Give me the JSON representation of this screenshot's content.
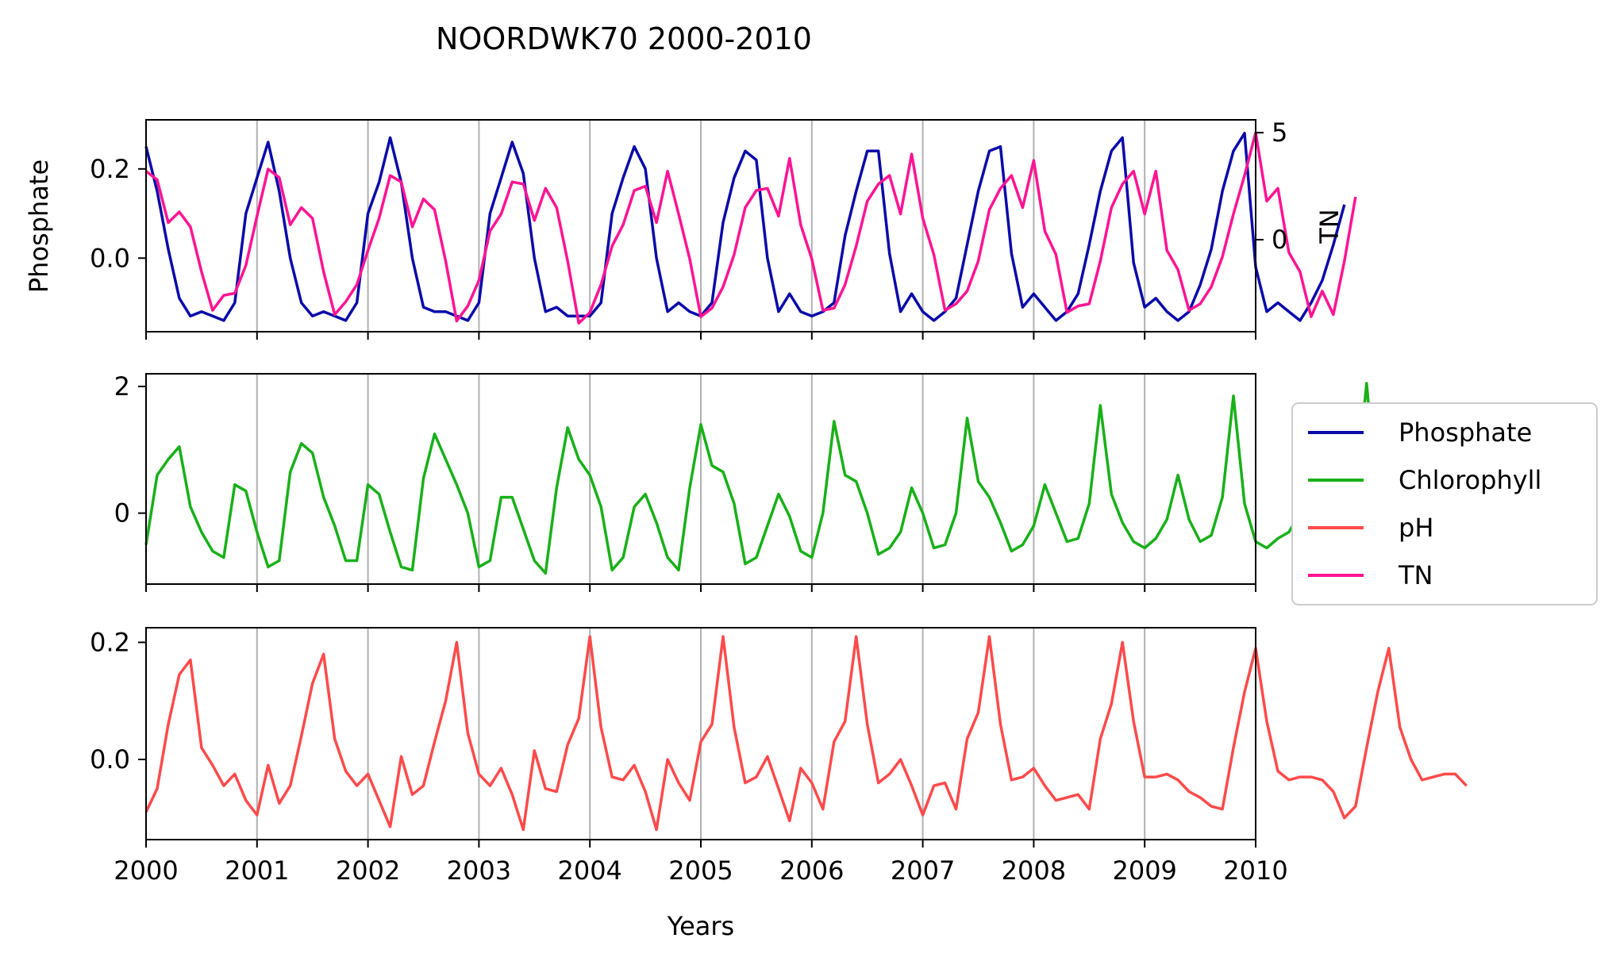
{
  "chart_data": {
    "type": "line",
    "title": "NOORDWK70 2000-2010",
    "xlabel": "Years",
    "x_range": [
      2000,
      2010
    ],
    "x_ticks": [
      "2000",
      "2001",
      "2002",
      "2003",
      "2004",
      "2005",
      "2006",
      "2007",
      "2008",
      "2009",
      "2010"
    ],
    "grid": "vertical lines at year ticks",
    "legend_placement": "right, outside axes",
    "legend": [
      "Phosphate",
      "Chlorophyll",
      "pH",
      "TN"
    ],
    "colors": {
      "Phosphate": "#0a0aaa",
      "Chlorophyll": "#18b018",
      "pH": "#ff4a4a",
      "TN": "#ff1493"
    },
    "panels": [
      {
        "name": "top",
        "ylabel": "Phosphate",
        "ylim": [
          -0.165,
          0.31
        ],
        "yticks": [
          "0.0",
          "0.2"
        ],
        "ytick_values": [
          0.0,
          0.2
        ],
        "right_axis": {
          "ylabel": "TN",
          "ylim": [
            -4.3,
            5.6
          ],
          "yticks": [
            "0",
            "5"
          ],
          "ytick_values": [
            0,
            5
          ]
        }
      },
      {
        "name": "middle",
        "ylim": [
          -1.12,
          2.2
        ],
        "yticks": [
          "0",
          "2"
        ],
        "ytick_values": [
          0,
          2
        ]
      },
      {
        "name": "bottom",
        "ylim": [
          -0.137,
          0.225
        ],
        "yticks": [
          "0.0",
          "0.2"
        ],
        "ytick_values": [
          0.0,
          0.2
        ]
      }
    ],
    "series": [
      {
        "name": "Phosphate",
        "panel": 0,
        "axis": "left",
        "x_start": 2000.0,
        "x_step": 0.1,
        "values": [
          0.25,
          0.15,
          0.02,
          -0.09,
          -0.13,
          -0.12,
          -0.13,
          -0.14,
          -0.1,
          0.1,
          0.18,
          0.26,
          0.15,
          0.0,
          -0.1,
          -0.13,
          -0.12,
          -0.13,
          -0.14,
          -0.1,
          0.1,
          0.17,
          0.27,
          0.17,
          0.0,
          -0.11,
          -0.12,
          -0.12,
          -0.13,
          -0.14,
          -0.1,
          0.1,
          0.18,
          0.26,
          0.19,
          0.0,
          -0.12,
          -0.11,
          -0.13,
          -0.13,
          -0.13,
          -0.1,
          0.1,
          0.18,
          0.25,
          0.2,
          0.0,
          -0.12,
          -0.1,
          -0.12,
          -0.13,
          -0.1,
          0.08,
          0.18,
          0.24,
          0.22,
          0.0,
          -0.12,
          -0.08,
          -0.12,
          -0.13,
          -0.12,
          -0.1,
          0.05,
          0.15,
          0.24,
          0.24,
          0.01,
          -0.12,
          -0.08,
          -0.12,
          -0.14,
          -0.12,
          -0.09,
          0.03,
          0.15,
          0.24,
          0.25,
          0.01,
          -0.11,
          -0.08,
          -0.11,
          -0.14,
          -0.12,
          -0.08,
          0.03,
          0.15,
          0.24,
          0.27,
          -0.01,
          -0.11,
          -0.09,
          -0.12,
          -0.14,
          -0.12,
          -0.06,
          0.02,
          0.15,
          0.24,
          0.28,
          -0.02,
          -0.12,
          -0.1,
          -0.12,
          -0.14,
          -0.1,
          -0.05,
          0.03,
          0.12
        ]
      },
      {
        "name": "TN",
        "panel": 0,
        "axis": "right",
        "x_start": 2000.0,
        "x_step": 0.1,
        "values": [
          3.2,
          2.8,
          0.8,
          1.3,
          0.6,
          -1.5,
          -3.3,
          -2.6,
          -2.5,
          -1.2,
          1.1,
          3.3,
          2.9,
          0.7,
          1.5,
          1.0,
          -1.5,
          -3.5,
          -2.9,
          -2.1,
          -0.5,
          1.0,
          3.0,
          2.7,
          0.6,
          1.9,
          1.4,
          -1.0,
          -3.8,
          -3.1,
          -1.9,
          0.4,
          1.2,
          2.7,
          2.6,
          0.9,
          2.4,
          1.5,
          -1.0,
          -3.9,
          -3.4,
          -2.1,
          -0.3,
          0.7,
          2.3,
          2.5,
          0.8,
          3.2,
          1.2,
          -0.9,
          -3.6,
          -3.2,
          -2.2,
          -0.7,
          1.5,
          2.3,
          2.4,
          1.1,
          3.8,
          0.7,
          -0.9,
          -3.3,
          -3.2,
          -2.1,
          -0.3,
          1.8,
          2.6,
          3.0,
          1.2,
          4.0,
          1.0,
          -0.7,
          -3.3,
          -3.0,
          -2.4,
          -1.0,
          1.4,
          2.4,
          3.0,
          1.5,
          3.7,
          0.4,
          -0.7,
          -3.4,
          -3.1,
          -3.0,
          -1.0,
          1.5,
          2.6,
          3.2,
          1.2,
          3.2,
          -0.5,
          -1.4,
          -3.3,
          -3.0,
          -2.2,
          -0.8,
          1.2,
          3.0,
          5.0,
          1.8,
          2.4,
          -0.6,
          -1.5,
          -3.6,
          -2.4,
          -3.5,
          -1.0,
          2.0
        ]
      },
      {
        "name": "Chlorophyll",
        "panel": 1,
        "axis": "left",
        "x_start": 2000.0,
        "x_step": 0.1,
        "values": [
          -0.5,
          0.6,
          0.85,
          1.05,
          0.1,
          -0.3,
          -0.6,
          -0.7,
          0.45,
          0.35,
          -0.3,
          -0.85,
          -0.75,
          0.65,
          1.1,
          0.95,
          0.25,
          -0.2,
          -0.75,
          -0.75,
          0.45,
          0.3,
          -0.3,
          -0.85,
          -0.9,
          0.55,
          1.25,
          0.85,
          0.45,
          0.0,
          -0.85,
          -0.75,
          0.25,
          0.25,
          -0.25,
          -0.75,
          -0.95,
          0.4,
          1.35,
          0.85,
          0.6,
          0.1,
          -0.9,
          -0.7,
          0.1,
          0.3,
          -0.15,
          -0.7,
          -0.9,
          0.4,
          1.4,
          0.75,
          0.65,
          0.15,
          -0.8,
          -0.7,
          -0.2,
          0.3,
          -0.05,
          -0.6,
          -0.7,
          0.0,
          1.45,
          0.6,
          0.5,
          0.0,
          -0.65,
          -0.55,
          -0.3,
          0.4,
          0.0,
          -0.55,
          -0.5,
          0.0,
          1.5,
          0.5,
          0.25,
          -0.15,
          -0.6,
          -0.5,
          -0.2,
          0.45,
          0.0,
          -0.45,
          -0.4,
          0.15,
          1.7,
          0.3,
          -0.15,
          -0.45,
          -0.55,
          -0.4,
          -0.1,
          0.6,
          -0.1,
          -0.45,
          -0.35,
          0.25,
          1.85,
          0.15,
          -0.45,
          -0.55,
          -0.4,
          -0.3,
          0.0,
          0.55,
          -0.15,
          -0.4,
          -0.45,
          0.3,
          2.05,
          0.1,
          -0.6,
          -0.65,
          -0.35,
          -0.15,
          0.0,
          0.5,
          -0.2,
          -0.45
        ]
      },
      {
        "name": "pH",
        "panel": 2,
        "axis": "left",
        "x_start": 2000.0,
        "x_step": 0.1,
        "values": [
          -0.09,
          -0.05,
          0.06,
          0.145,
          0.17,
          0.02,
          -0.01,
          -0.045,
          -0.025,
          -0.07,
          -0.095,
          -0.01,
          -0.075,
          -0.045,
          0.04,
          0.13,
          0.18,
          0.035,
          -0.02,
          -0.045,
          -0.025,
          -0.07,
          -0.115,
          0.005,
          -0.06,
          -0.045,
          0.03,
          0.1,
          0.2,
          0.045,
          -0.025,
          -0.045,
          -0.015,
          -0.06,
          -0.12,
          0.015,
          -0.05,
          -0.055,
          0.025,
          0.07,
          0.21,
          0.055,
          -0.03,
          -0.035,
          -0.01,
          -0.055,
          -0.12,
          0.0,
          -0.04,
          -0.07,
          0.03,
          0.06,
          0.21,
          0.055,
          -0.04,
          -0.03,
          0.005,
          -0.05,
          -0.105,
          -0.015,
          -0.04,
          -0.085,
          0.03,
          0.065,
          0.21,
          0.06,
          -0.04,
          -0.025,
          0.0,
          -0.045,
          -0.095,
          -0.045,
          -0.04,
          -0.085,
          0.035,
          0.08,
          0.21,
          0.06,
          -0.035,
          -0.03,
          -0.015,
          -0.045,
          -0.07,
          -0.065,
          -0.06,
          -0.085,
          0.035,
          0.095,
          0.2,
          0.065,
          -0.03,
          -0.03,
          -0.025,
          -0.035,
          -0.055,
          -0.065,
          -0.08,
          -0.085,
          0.02,
          0.115,
          0.19,
          0.065,
          -0.02,
          -0.035,
          -0.03,
          -0.03,
          -0.035,
          -0.055,
          -0.1,
          -0.08,
          0.02,
          0.115,
          0.19,
          0.055,
          0.0,
          -0.035,
          -0.03,
          -0.025,
          -0.025,
          -0.045
        ]
      }
    ]
  }
}
